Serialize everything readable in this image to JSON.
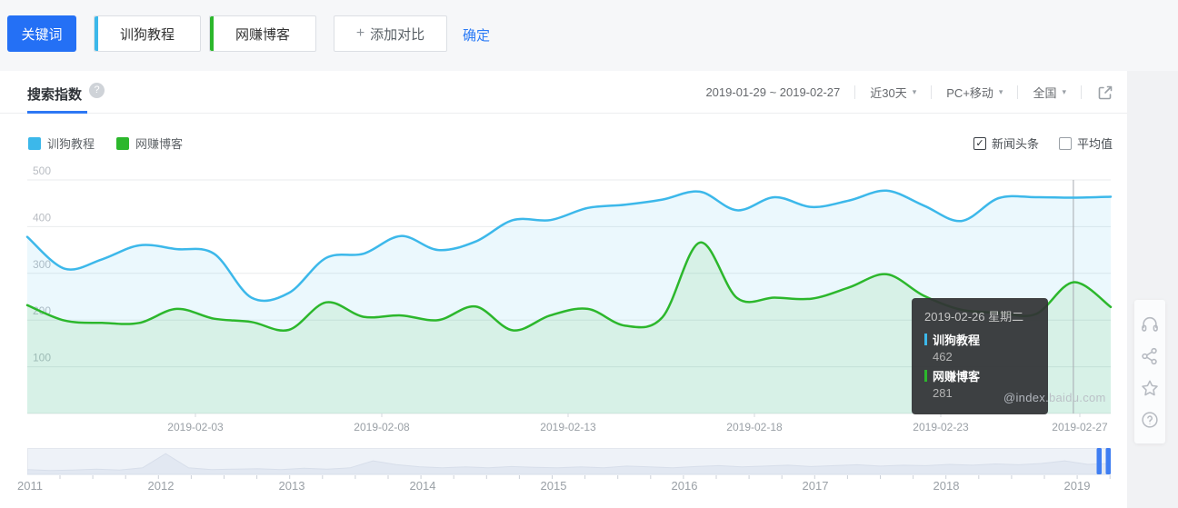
{
  "topbar": {
    "keyword_button": "关键词",
    "keyword_tags": [
      {
        "label": "训狗教程",
        "color": "#3cb8ea"
      },
      {
        "label": "网赚博客",
        "color": "#2cb72c"
      }
    ],
    "add_compare": {
      "plus": "+",
      "label": "添加对比"
    },
    "confirm": "确定"
  },
  "panel": {
    "tab_label": "搜索指数",
    "help_glyph": "?",
    "date_range": "2019-01-29 ~ 2019-02-27",
    "filters": [
      "近30天",
      "PC+移动",
      "全国"
    ],
    "caret_glyph": "▾",
    "check_glyph": "✓",
    "toggles": [
      {
        "label": "新闻头条",
        "checked": true
      },
      {
        "label": "平均值",
        "checked": false
      }
    ]
  },
  "chart_data": {
    "type": "line",
    "title": "搜索指数",
    "x": [
      "2019-01-29",
      "2019-01-30",
      "2019-01-31",
      "2019-02-01",
      "2019-02-02",
      "2019-02-03",
      "2019-02-04",
      "2019-02-05",
      "2019-02-06",
      "2019-02-07",
      "2019-02-08",
      "2019-02-09",
      "2019-02-10",
      "2019-02-11",
      "2019-02-12",
      "2019-02-13",
      "2019-02-14",
      "2019-02-15",
      "2019-02-16",
      "2019-02-17",
      "2019-02-18",
      "2019-02-19",
      "2019-02-20",
      "2019-02-21",
      "2019-02-22",
      "2019-02-23",
      "2019-02-24",
      "2019-02-25",
      "2019-02-26",
      "2019-02-27"
    ],
    "series": [
      {
        "name": "训狗教程",
        "color": "#3cb8ea",
        "values": [
          378,
          310,
          330,
          360,
          352,
          342,
          248,
          258,
          333,
          342,
          380,
          350,
          368,
          414,
          414,
          440,
          447,
          458,
          475,
          435,
          463,
          442,
          456,
          477,
          445,
          412,
          461,
          463,
          462,
          464
        ]
      },
      {
        "name": "网赚博客",
        "color": "#2cb72c",
        "values": [
          232,
          199,
          194,
          194,
          224,
          203,
          196,
          179,
          238,
          207,
          210,
          200,
          229,
          178,
          210,
          224,
          188,
          206,
          366,
          247,
          248,
          246,
          270,
          298,
          252,
          222,
          216,
          213,
          281,
          228
        ]
      }
    ],
    "ylim": [
      0,
      500
    ],
    "yticks": [
      100,
      200,
      300,
      400,
      500
    ],
    "xtick_labels": [
      "2019-02-03",
      "2019-02-08",
      "2019-02-13",
      "2019-02-18",
      "2019-02-23",
      "2019-02-27"
    ],
    "grid": true,
    "legend_position": "top-left",
    "highlight_date": "2019-02-26"
  },
  "tooltip": {
    "date_label": "2019-02-26 星期二",
    "items": [
      {
        "name": "训狗教程",
        "value": "462",
        "color": "#3cb8ea"
      },
      {
        "name": "网赚博客",
        "value": "281",
        "color": "#2cb72c"
      }
    ]
  },
  "watermark": "@index.baidu.com",
  "timeline": {
    "years": [
      "2011",
      "2012",
      "2013",
      "2014",
      "2015",
      "2016",
      "2017",
      "2018",
      "2019"
    ],
    "handle_color": "#3f7ef2",
    "spark": [
      0.22,
      0.18,
      0.2,
      0.24,
      0.2,
      0.3,
      0.95,
      0.3,
      0.22,
      0.24,
      0.26,
      0.22,
      0.28,
      0.24,
      0.3,
      0.62,
      0.45,
      0.35,
      0.3,
      0.34,
      0.3,
      0.36,
      0.32,
      0.3,
      0.34,
      0.3,
      0.38,
      0.34,
      0.3,
      0.36,
      0.4,
      0.34,
      0.38,
      0.42,
      0.36,
      0.4,
      0.44,
      0.38,
      0.42,
      0.4,
      0.46,
      0.42,
      0.48,
      0.44,
      0.5,
      0.62,
      0.46,
      0.5
    ]
  },
  "side_tools": [
    {
      "icon": "headset-icon"
    },
    {
      "icon": "share-icon"
    },
    {
      "icon": "star-icon"
    },
    {
      "icon": "help-icon"
    }
  ],
  "colors": {
    "accent_blue": "#2470f5",
    "link_blue": "#2b7bf6",
    "series_blue": "#3cb8ea",
    "series_green": "#2cb72c"
  }
}
